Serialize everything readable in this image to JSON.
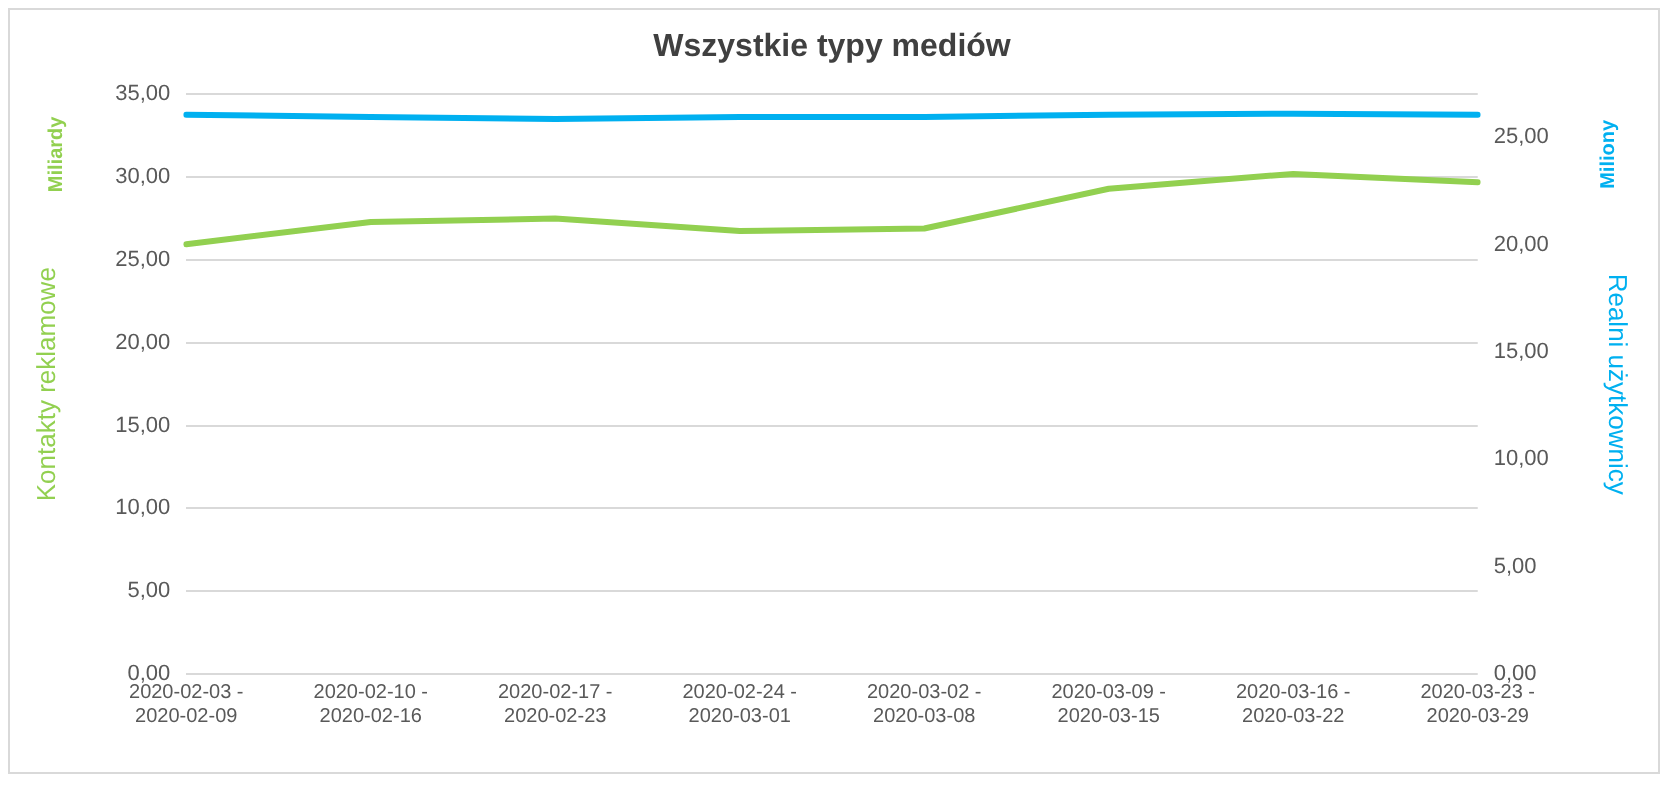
{
  "chart_data": {
    "type": "line",
    "title": "Wszystkie typy mediów",
    "ylabel": "Kontakty reklamowe",
    "y2label": "Realni użytkownicy",
    "annotations": [
      "Miliardy",
      "Miliony"
    ],
    "categories": [
      "2020-02-03 - 2020-02-09",
      "2020-02-10 - 2020-02-16",
      "2020-02-17 - 2020-02-23",
      "2020-02-24 - 2020-03-01",
      "2020-03-02 - 2020-03-08",
      "2020-03-09 - 2020-03-15",
      "2020-03-16 - 2020-03-22",
      "2020-03-23 - 2020-03-29"
    ],
    "series": [
      {
        "color": "#92d050",
        "values": [
          25.95,
          27.3,
          27.5,
          26.75,
          26.9,
          29.3,
          30.2,
          29.7
        ]
      },
      {
        "color": "#00b0f0",
        "axis": "y2",
        "values": [
          26.05,
          25.95,
          25.85,
          25.95,
          25.95,
          26.05,
          26.1,
          26.05
        ]
      }
    ],
    "ylim": [
      0,
      35
    ],
    "yticks": [
      {
        "value": 0,
        "label": "0,00"
      },
      {
        "value": 5,
        "label": "5,00"
      },
      {
        "value": 10,
        "label": "10,00"
      },
      {
        "value": 15,
        "label": "15,00"
      },
      {
        "value": 20,
        "label": "20,00"
      },
      {
        "value": 25,
        "label": "25,00"
      },
      {
        "value": 30,
        "label": "30,00"
      },
      {
        "value": 35,
        "label": "35,00"
      }
    ],
    "y2lim": [
      0,
      27
    ],
    "y2ticks": [
      {
        "value": 0,
        "label": "0,00"
      },
      {
        "value": 5,
        "label": "5,00"
      },
      {
        "value": 10,
        "label": "10,00"
      },
      {
        "value": 15,
        "label": "15,00"
      },
      {
        "value": 20,
        "label": "20,00"
      },
      {
        "value": 25,
        "label": "25,00"
      }
    ],
    "grid": "y",
    "legend": false,
    "marker": "none",
    "line_style": "solid"
  }
}
